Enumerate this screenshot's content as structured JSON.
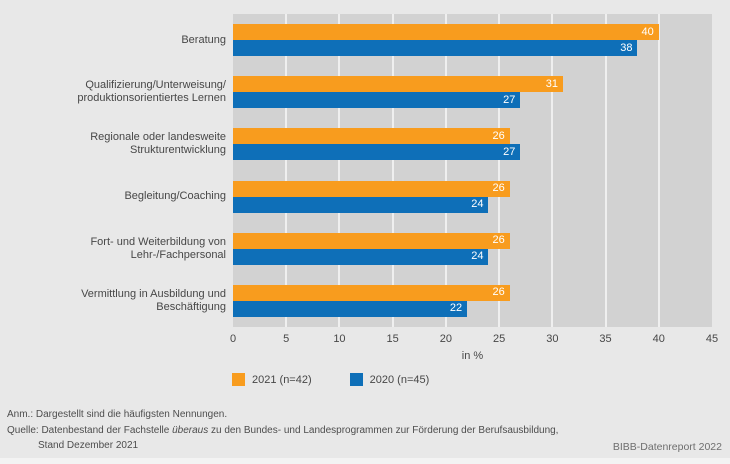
{
  "chart_data": {
    "type": "bar",
    "orientation": "horizontal",
    "categories": [
      "Beratung",
      "Qualifizierung/Unterweisung/\nproduktionsorientiertes Lernen",
      "Regionale oder landesweite\nStrukturentwicklung",
      "Begleitung/Coaching",
      "Fort- und Weiterbildung von\nLehr-/Fachpersonal",
      "Vermittlung in Ausbildung und\nBeschäftigung"
    ],
    "series": [
      {
        "name": "2021 (n=42)",
        "color": "#F89C1E",
        "values": [
          40,
          31,
          26,
          26,
          26,
          26
        ]
      },
      {
        "name": "2020 (n=45)",
        "color": "#0E6FB8",
        "values": [
          38,
          27,
          27,
          24,
          24,
          22
        ]
      }
    ],
    "xlabel": "in %",
    "xlim": [
      0,
      45
    ],
    "xticks": [
      0,
      5,
      10,
      15,
      20,
      25,
      30,
      35,
      40,
      45
    ],
    "grid": true,
    "legend_position": "bottom"
  },
  "footer": {
    "note": "Anm.: Dargestellt sind die häufigsten Nennungen.",
    "source_prefix": "Quelle: Datenbestand der Fachstelle ",
    "source_italic": "überaus",
    "source_suffix": " zu den Bundes- und Landesprogrammen zur Förderung der Berufsausbildung,",
    "source_line2": "Stand Dezember 2021",
    "credit": "BIBB-Datenreport 2022"
  },
  "colors": {
    "background": "#E8E8E8",
    "plot_background": "#D2D2D2",
    "gridline": "#EFEFEF",
    "bar_2021": "#F89C1E",
    "bar_2020": "#0E6FB8",
    "text": "#474747",
    "value_label": "#FFFFFF"
  }
}
